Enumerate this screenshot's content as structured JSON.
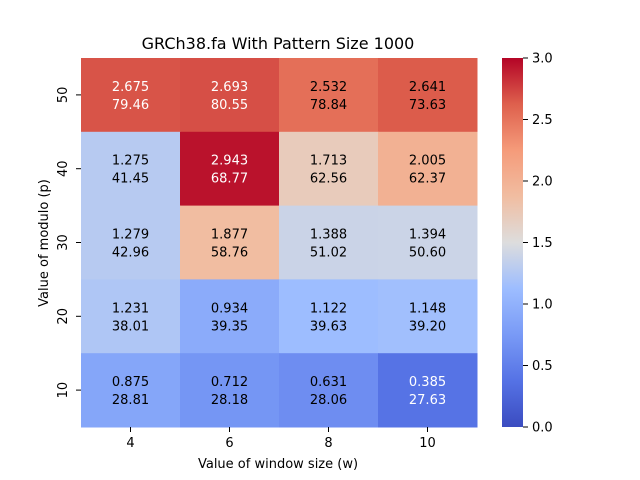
{
  "chart_data": {
    "type": "heatmap",
    "title": "GRCh38.fa With Pattern Size 1000",
    "xlabel": "Value of window size (w)",
    "ylabel": "Value of modulo (p)",
    "x_categories": [
      "4",
      "6",
      "8",
      "10"
    ],
    "y_categories": [
      "50",
      "40",
      "30",
      "20",
      "10"
    ],
    "values": [
      [
        2.675,
        2.693,
        2.532,
        2.641
      ],
      [
        1.275,
        2.943,
        1.713,
        2.005
      ],
      [
        1.279,
        1.877,
        1.388,
        1.394
      ],
      [
        1.231,
        0.934,
        1.122,
        1.148
      ],
      [
        0.875,
        0.712,
        0.631,
        0.385
      ]
    ],
    "secondary_values": [
      [
        "79.46",
        "80.55",
        "78.84",
        "73.63"
      ],
      [
        "41.45",
        "68.77",
        "62.56",
        "62.37"
      ],
      [
        "42.96",
        "58.76",
        "51.02",
        "50.60"
      ],
      [
        "38.01",
        "39.35",
        "39.63",
        "39.20"
      ],
      [
        "28.81",
        "28.18",
        "28.06",
        "27.63"
      ]
    ],
    "value_labels": [
      [
        "2.675",
        "2.693",
        "2.532",
        "2.641"
      ],
      [
        "1.275",
        "2.943",
        "1.713",
        "2.005"
      ],
      [
        "1.279",
        "1.877",
        "1.388",
        "1.394"
      ],
      [
        "1.231",
        "0.934",
        "1.122",
        "1.148"
      ],
      [
        "0.875",
        "0.712",
        "0.631",
        "0.385"
      ]
    ],
    "colorbar": {
      "min": 0.0,
      "max": 3.0,
      "ticks": [
        "0.0",
        "0.5",
        "1.0",
        "1.5",
        "2.0",
        "2.5",
        "3.0"
      ],
      "colormap": "coolwarm"
    }
  }
}
